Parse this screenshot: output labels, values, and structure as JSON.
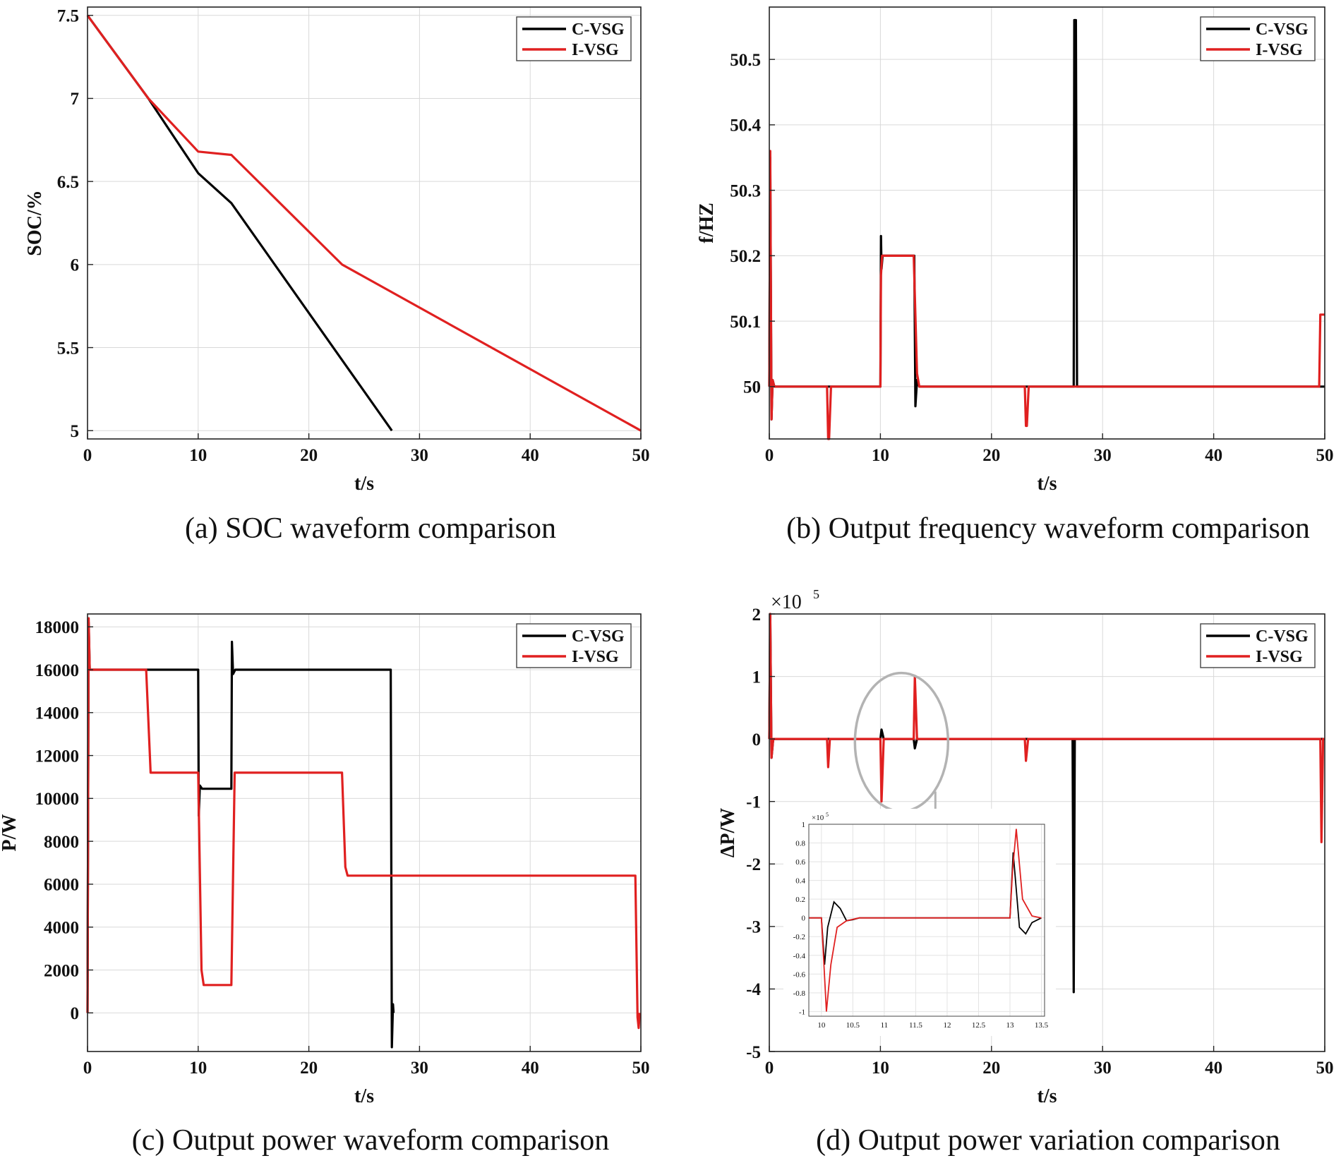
{
  "colors": {
    "c_vsg": "#000000",
    "i_vsg": "#e02020",
    "grid": "#d9d9d9",
    "axis": "#222222",
    "inset_arrow": "#b3b3b3"
  },
  "chart_data": [
    {
      "id": "a",
      "type": "line",
      "caption": "(a) SOC waveform comparison",
      "xlabel": "t/s",
      "ylabel": "SOC/%",
      "xlim": [
        0,
        50
      ],
      "ylim": [
        4.95,
        7.55
      ],
      "xticks": [
        0,
        10,
        20,
        30,
        40,
        50
      ],
      "yticks": [
        5,
        5.5,
        6,
        6.5,
        7,
        7.5
      ],
      "ytick_labels": [
        "5",
        "5.5",
        "6",
        "6.5",
        "7",
        "7.5"
      ],
      "legend": "top-right",
      "series": [
        {
          "name": "C-VSG",
          "color": "#000000",
          "x": [
            0,
            5.5,
            10,
            13,
            27.5
          ],
          "y": [
            7.5,
            7.0,
            6.55,
            6.37,
            5.0
          ]
        },
        {
          "name": "I-VSG",
          "color": "#e02020",
          "x": [
            0,
            5.5,
            10,
            13,
            23,
            50
          ],
          "y": [
            7.5,
            7.0,
            6.68,
            6.66,
            6.0,
            5.0
          ]
        }
      ]
    },
    {
      "id": "b",
      "type": "line",
      "caption": "(b) Output frequency waveform comparison",
      "xlabel": "t/s",
      "ylabel": "f/HZ",
      "xlim": [
        0,
        50
      ],
      "ylim": [
        49.92,
        50.58
      ],
      "xticks": [
        0,
        10,
        20,
        30,
        40,
        50
      ],
      "yticks": [
        50,
        50.1,
        50.2,
        50.3,
        50.4,
        50.5
      ],
      "ytick_labels": [
        "50",
        "50.1",
        "50.2",
        "50.3",
        "50.4",
        "50.5"
      ],
      "legend": "top-right",
      "series": [
        {
          "name": "C-VSG",
          "color": "#000000",
          "x": [
            0,
            0.08,
            0.2,
            0.3,
            0.45,
            10,
            10.05,
            10.1,
            10.2,
            10.35,
            13,
            13.05,
            13.15,
            13.3,
            13.5,
            27.4,
            27.45,
            27.6,
            27.7,
            50
          ],
          "y": [
            50,
            50.35,
            49.95,
            50.01,
            50,
            50,
            50.23,
            50.18,
            50.2,
            50.2,
            50.2,
            50.2,
            49.97,
            50.01,
            50,
            50,
            50.56,
            50.56,
            50,
            50
          ]
        },
        {
          "name": "I-VSG",
          "color": "#e02020",
          "x": [
            0,
            0.08,
            0.2,
            0.3,
            0.45,
            5.2,
            5.3,
            5.38,
            5.55,
            10,
            10.05,
            10.15,
            10.3,
            13,
            13.3,
            13.5,
            23,
            23.1,
            23.18,
            23.35,
            49.5,
            49.6,
            49.7,
            50
          ],
          "y": [
            50,
            50.36,
            49.95,
            50.01,
            50,
            50,
            49.92,
            49.92,
            50,
            50,
            50.17,
            50.2,
            50.2,
            50.2,
            50.02,
            50,
            50,
            49.94,
            49.94,
            50,
            50,
            50.11,
            50.11,
            50.11
          ]
        }
      ]
    },
    {
      "id": "c",
      "type": "line",
      "caption": "(c) Output power waveform comparison",
      "xlabel": "t/s",
      "ylabel": "P/W",
      "xlim": [
        0,
        50
      ],
      "ylim": [
        -1800,
        18600
      ],
      "xticks": [
        0,
        10,
        20,
        30,
        40,
        50
      ],
      "yticks": [
        0,
        2000,
        4000,
        6000,
        8000,
        10000,
        12000,
        14000,
        16000,
        18000
      ],
      "ytick_labels": [
        "0",
        "2000",
        "4000",
        "6000",
        "8000",
        "10000",
        "12000",
        "14000",
        "16000",
        "18000"
      ],
      "legend": "top-right",
      "series": [
        {
          "name": "C-VSG",
          "color": "#000000",
          "x": [
            0,
            0.1,
            0.2,
            0.35,
            10,
            10.05,
            10.15,
            10.35,
            13,
            13.05,
            13.15,
            13.35,
            27.4,
            27.5,
            27.6,
            27.65
          ],
          "y": [
            0,
            18200,
            16000,
            16000,
            16000,
            9200,
            10600,
            10450,
            10450,
            17300,
            15800,
            16000,
            16000,
            -1600,
            400,
            0
          ]
        },
        {
          "name": "I-VSG",
          "color": "#e02020",
          "x": [
            0,
            0.1,
            0.2,
            0.35,
            5.3,
            5.7,
            10,
            10.3,
            10.5,
            13,
            13.3,
            23,
            23.3,
            23.5,
            49.5,
            49.7,
            49.8,
            49.9
          ],
          "y": [
            0,
            18400,
            16000,
            16000,
            16000,
            11200,
            11200,
            2000,
            1300,
            1300,
            11200,
            11200,
            6800,
            6400,
            6400,
            -200,
            -700,
            0
          ]
        }
      ]
    },
    {
      "id": "d",
      "type": "line",
      "caption": "(d) Output power variation comparison",
      "xlabel": "t/s",
      "ylabel": "ΔP/W",
      "exponent_label": "×10",
      "exponent_power": "5",
      "xlim": [
        0,
        50
      ],
      "ylim": [
        -5,
        2
      ],
      "xticks": [
        0,
        10,
        20,
        30,
        40,
        50
      ],
      "yticks": [
        -5,
        -4,
        -3,
        -2,
        -1,
        0,
        1,
        2
      ],
      "ytick_labels": [
        "-5",
        "-4",
        "-3",
        "-2",
        "-1",
        "0",
        "1",
        "2"
      ],
      "legend": "top-right",
      "series": [
        {
          "name": "C-VSG",
          "color": "#000000",
          "x": [
            0,
            0.08,
            0.2,
            0.35,
            10,
            10.1,
            10.3,
            13,
            13.1,
            13.3,
            27.3,
            27.4,
            27.5,
            50
          ],
          "y": [
            0,
            2,
            -0.3,
            0,
            0,
            0.15,
            0,
            0,
            -0.15,
            0,
            0,
            -4.05,
            0,
            0
          ]
        },
        {
          "name": "I-VSG",
          "color": "#e02020",
          "x": [
            0,
            0.08,
            0.2,
            0.35,
            5.2,
            5.3,
            5.45,
            10,
            10.1,
            10.3,
            13,
            13.1,
            13.3,
            23,
            23.1,
            23.3,
            49.6,
            49.7,
            49.85,
            50
          ],
          "y": [
            0,
            2,
            -0.3,
            0,
            0,
            -0.45,
            0,
            0,
            -1.0,
            0,
            0,
            1.0,
            0,
            0,
            -0.35,
            0,
            0,
            -1.65,
            0,
            0
          ]
        }
      ],
      "inset": {
        "exponent_label": "×10",
        "exponent_power": "5",
        "xlim": [
          9.8,
          13.55
        ],
        "ylim": [
          -1.05,
          1.0
        ],
        "xticks": [
          10,
          10.5,
          11,
          11.5,
          12,
          12.5,
          13,
          13.5
        ],
        "xtick_labels": [
          "10",
          "10.5",
          "11",
          "11.5",
          "12",
          "12.5",
          "13",
          "13.5"
        ],
        "yticks": [
          -1,
          -0.8,
          -0.6,
          -0.4,
          -0.2,
          0,
          0.2,
          0.4,
          0.6,
          0.8,
          1
        ],
        "ytick_labels": [
          "-1",
          "-0.8",
          "-0.6",
          "-0.4",
          "-0.2",
          "0",
          "0.2",
          "0.4",
          "0.6",
          "0.8",
          "1"
        ],
        "series": [
          {
            "name": "C-VSG",
            "color": "#000000",
            "x": [
              9.8,
              10.0,
              10.05,
              10.1,
              10.2,
              10.3,
              10.4,
              10.5,
              10.6,
              13.0,
              13.05,
              13.15,
              13.25,
              13.35,
              13.5
            ],
            "y": [
              0,
              0,
              -0.5,
              -0.1,
              0.17,
              0.1,
              -0.03,
              -0.02,
              0,
              0,
              0.7,
              -0.1,
              -0.17,
              -0.05,
              0
            ]
          },
          {
            "name": "I-VSG",
            "color": "#e02020",
            "x": [
              9.8,
              10.0,
              10.04,
              10.08,
              10.15,
              10.25,
              10.4,
              10.6,
              13.0,
              13.04,
              13.1,
              13.2,
              13.35,
              13.5
            ],
            "y": [
              0,
              0,
              -0.5,
              -1.0,
              -0.5,
              -0.1,
              -0.03,
              0,
              0,
              0.5,
              0.95,
              0.2,
              0.02,
              0
            ]
          }
        ]
      }
    }
  ]
}
